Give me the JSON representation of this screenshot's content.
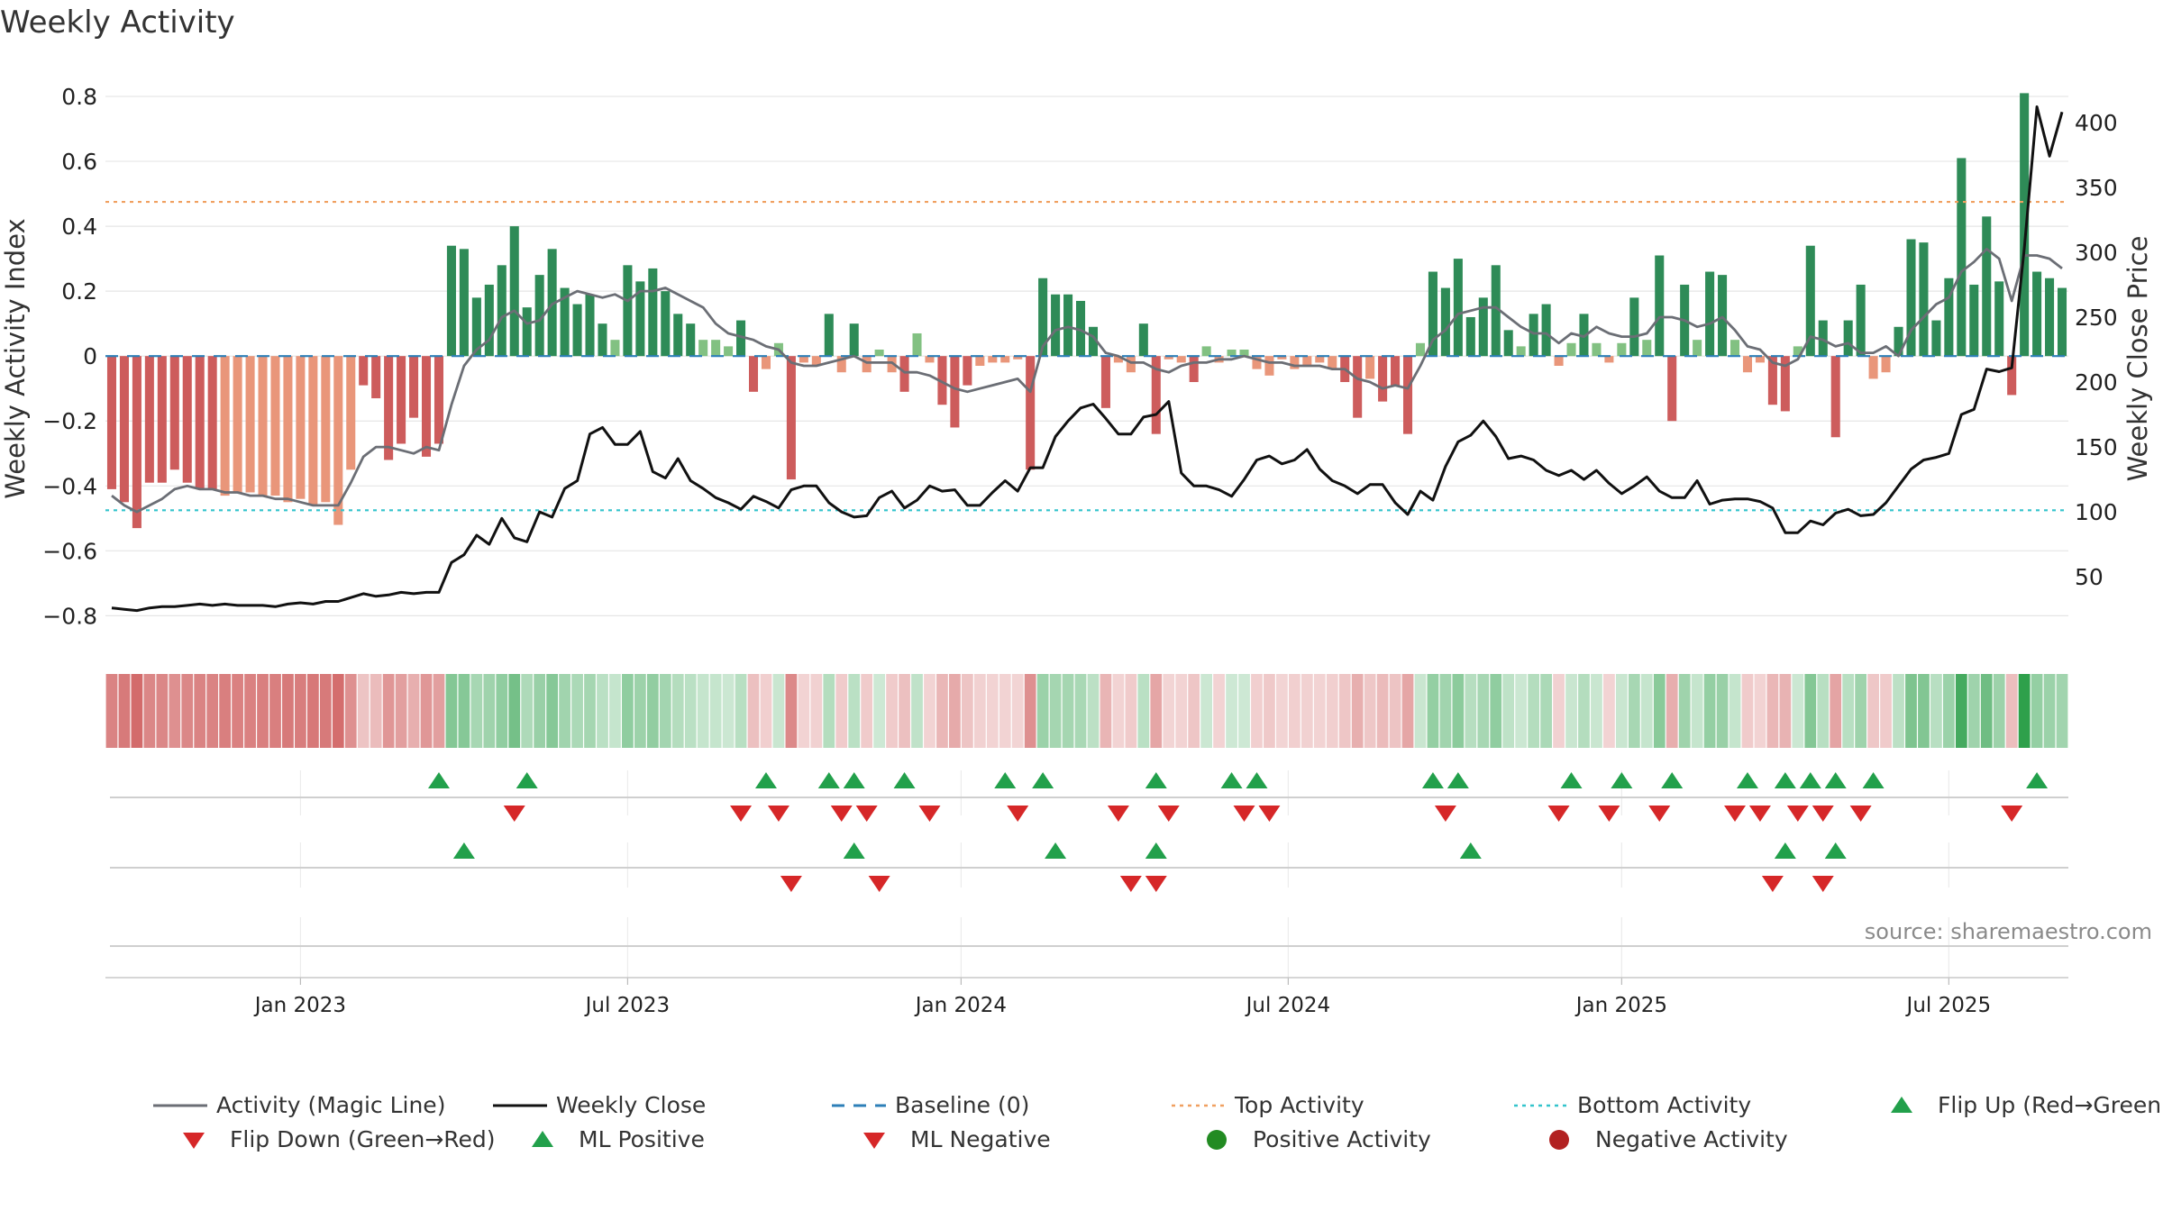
{
  "chart_data": {
    "type": "bar",
    "title": "Weekly Activity",
    "source": "source: sharemaestro.com",
    "ylabel": "Weekly Activity Index",
    "y2label": "Weekly Close Price",
    "ylim": [
      -0.86,
      0.8
    ],
    "y2lim": [
      5,
      420
    ],
    "yticks": [
      -0.8,
      -0.6,
      -0.4,
      -0.2,
      0,
      0.2,
      0.4,
      0.6,
      0.8
    ],
    "yticklabels": [
      "−0.8",
      "−0.6",
      "−0.4",
      "−0.2",
      "0",
      "0.2",
      "0.4",
      "0.6",
      "0.8"
    ],
    "y2ticks": [
      50,
      100,
      150,
      200,
      250,
      300,
      350,
      400
    ],
    "y2ticklabels": [
      "50",
      "100",
      "150",
      "200",
      "250",
      "300",
      "350",
      "400"
    ],
    "week_start_index": 0,
    "xticks": [
      {
        "label": "Jan 2023",
        "week": 15
      },
      {
        "label": "Jul 2023",
        "week": 41
      },
      {
        "label": "Jan 2024",
        "week": 67.5
      },
      {
        "label": "Jul 2024",
        "week": 93.5
      },
      {
        "label": "Jan 2025",
        "week": 120
      },
      {
        "label": "Jul 2025",
        "week": 146
      }
    ],
    "top_activity": 0.475,
    "bottom_activity": -0.475,
    "activity": [
      -0.41,
      -0.45,
      -0.53,
      -0.39,
      -0.39,
      -0.35,
      -0.39,
      -0.41,
      -0.41,
      -0.43,
      -0.42,
      -0.42,
      -0.43,
      -0.43,
      -0.45,
      -0.44,
      -0.46,
      -0.45,
      -0.52,
      -0.35,
      -0.09,
      -0.13,
      -0.32,
      -0.27,
      -0.19,
      -0.31,
      -0.27,
      0.34,
      0.33,
      0.18,
      0.22,
      0.28,
      0.4,
      0.15,
      0.25,
      0.33,
      0.21,
      0.16,
      0.19,
      0.1,
      0.05,
      0.28,
      0.23,
      0.27,
      0.2,
      0.13,
      0.1,
      0.05,
      0.05,
      0.03,
      0.11,
      -0.11,
      -0.04,
      0.04,
      -0.38,
      -0.02,
      -0.03,
      0.13,
      -0.05,
      0.1,
      -0.05,
      0.02,
      -0.05,
      -0.11,
      0.07,
      -0.02,
      -0.15,
      -0.22,
      -0.09,
      -0.03,
      -0.02,
      -0.02,
      -0.01,
      -0.35,
      0.24,
      0.19,
      0.19,
      0.17,
      0.09,
      -0.16,
      -0.02,
      -0.05,
      0.1,
      -0.24,
      -0.01,
      -0.02,
      -0.08,
      0.03,
      -0.02,
      0.02,
      0.02,
      -0.04,
      -0.06,
      -0.01,
      -0.04,
      -0.03,
      -0.02,
      -0.04,
      -0.08,
      -0.19,
      -0.07,
      -0.14,
      -0.09,
      -0.24,
      0.04,
      0.26,
      0.21,
      0.3,
      0.12,
      0.18,
      0.28,
      0.08,
      0.03,
      0.13,
      0.16,
      -0.03,
      0.04,
      0.13,
      0.04,
      -0.02,
      0.04,
      0.18,
      0.05,
      0.31,
      -0.2,
      0.22,
      0.05,
      0.26,
      0.25,
      0.05,
      -0.05,
      -0.02,
      -0.15,
      -0.17,
      0.03,
      0.34,
      0.11,
      -0.25,
      0.11,
      0.22,
      -0.07,
      -0.05,
      0.09,
      0.36,
      0.35,
      0.11,
      0.24,
      0.61,
      0.22,
      0.43,
      0.23,
      -0.12,
      0.81,
      0.26,
      0.24,
      0.21
    ],
    "activity_magic_line": [
      -0.43,
      -0.46,
      -0.48,
      -0.46,
      -0.44,
      -0.41,
      -0.4,
      -0.41,
      -0.41,
      -0.42,
      -0.42,
      -0.43,
      -0.43,
      -0.44,
      -0.44,
      -0.45,
      -0.46,
      -0.46,
      -0.46,
      -0.39,
      -0.31,
      -0.28,
      -0.28,
      -0.29,
      -0.3,
      -0.28,
      -0.29,
      -0.15,
      -0.03,
      0.02,
      0.05,
      0.12,
      0.14,
      0.1,
      0.11,
      0.16,
      0.18,
      0.2,
      0.19,
      0.18,
      0.19,
      0.17,
      0.2,
      0.2,
      0.21,
      0.19,
      0.17,
      0.15,
      0.1,
      0.07,
      0.06,
      0.05,
      0.03,
      0.02,
      -0.02,
      -0.03,
      -0.03,
      -0.02,
      -0.01,
      0.0,
      -0.02,
      -0.02,
      -0.02,
      -0.05,
      -0.05,
      -0.06,
      -0.08,
      -0.1,
      -0.11,
      -0.1,
      -0.09,
      -0.08,
      -0.07,
      -0.11,
      0.03,
      0.08,
      0.09,
      0.08,
      0.06,
      0.01,
      0.0,
      -0.02,
      -0.02,
      -0.04,
      -0.05,
      -0.03,
      -0.02,
      -0.02,
      -0.01,
      -0.01,
      0.0,
      -0.01,
      -0.02,
      -0.02,
      -0.03,
      -0.03,
      -0.03,
      -0.04,
      -0.04,
      -0.07,
      -0.08,
      -0.1,
      -0.09,
      -0.1,
      -0.03,
      0.05,
      0.08,
      0.13,
      0.14,
      0.15,
      0.15,
      0.12,
      0.09,
      0.07,
      0.07,
      0.04,
      0.07,
      0.06,
      0.09,
      0.07,
      0.06,
      0.06,
      0.07,
      0.12,
      0.12,
      0.11,
      0.09,
      0.1,
      0.12,
      0.08,
      0.03,
      0.02,
      -0.02,
      -0.03,
      -0.01,
      0.06,
      0.05,
      0.03,
      0.04,
      0.01,
      0.01,
      0.03,
      0.0,
      0.08,
      0.12,
      0.16,
      0.18,
      0.26,
      0.29,
      0.33,
      0.3,
      0.17,
      0.31,
      0.31,
      0.3,
      0.27
    ],
    "weekly_close": [
      26,
      25,
      24,
      26,
      27,
      27,
      28,
      29,
      28,
      29,
      28,
      28,
      28,
      27,
      29,
      30,
      29,
      31,
      31,
      34,
      37,
      35,
      36,
      38,
      37,
      38,
      38,
      61,
      67,
      82,
      75,
      95,
      80,
      77,
      100,
      96,
      118,
      124,
      160,
      165,
      152,
      152,
      162,
      131,
      126,
      141,
      124,
      118,
      111,
      107,
      102,
      112,
      108,
      103,
      117,
      120,
      120,
      107,
      100,
      96,
      97,
      111,
      116,
      103,
      109,
      120,
      116,
      117,
      105,
      105,
      115,
      124,
      116,
      134,
      134,
      158,
      170,
      180,
      183,
      172,
      160,
      160,
      173,
      175,
      185,
      130,
      120,
      120,
      117,
      112,
      125,
      140,
      143,
      137,
      140,
      148,
      133,
      124,
      120,
      114,
      121,
      121,
      107,
      98,
      116,
      109,
      135,
      154,
      159,
      170,
      158,
      141,
      143,
      140,
      132,
      128,
      132,
      125,
      132,
      122,
      114,
      120,
      127,
      116,
      111,
      111,
      124,
      106,
      109,
      110,
      110,
      108,
      103,
      84,
      84,
      93,
      90,
      99,
      102,
      97,
      98,
      107,
      120,
      133,
      140,
      142,
      145,
      175,
      179,
      210,
      208,
      211,
      303,
      412,
      374,
      408
    ],
    "series": [
      {
        "name": "Activity (Magic Line)",
        "style": "line",
        "color": "#6b6e75"
      },
      {
        "name": "Weekly Close",
        "style": "line",
        "color": "#111111"
      },
      {
        "name": "Baseline (0)",
        "style": "dashed",
        "color": "#2d7fb8"
      },
      {
        "name": "Top Activity",
        "style": "dotted",
        "color": "#f0a060"
      },
      {
        "name": "Bottom Activity",
        "style": "dotted",
        "color": "#33c4cc"
      },
      {
        "name": "Flip Up (Red→Green)",
        "style": "triangle-up",
        "color": "#22a04b"
      },
      {
        "name": "Flip Down (Green→Red)",
        "style": "triangle-down",
        "color": "#d62728"
      },
      {
        "name": "ML Positive",
        "style": "triangle-up",
        "color": "#22a04b"
      },
      {
        "name": "ML Negative",
        "style": "triangle-down",
        "color": "#d62728"
      },
      {
        "name": "Positive Activity",
        "style": "circle",
        "color": "#228b22"
      },
      {
        "name": "Negative Activity",
        "style": "circle",
        "color": "#b22222"
      }
    ],
    "signals": {
      "flip_up_weeks": [
        26,
        33,
        52,
        57,
        59,
        63,
        71,
        74,
        83,
        89,
        91,
        105,
        107,
        116,
        120,
        124,
        130,
        133,
        135,
        137,
        140,
        153
      ],
      "flip_down_weeks": [
        32,
        50,
        53,
        58,
        60,
        65,
        72,
        80,
        84,
        90,
        92,
        106,
        115,
        119,
        123,
        129,
        131,
        134,
        136,
        139,
        151
      ],
      "ml_positive_weeks": [
        28,
        59,
        75,
        83,
        108,
        133,
        137
      ],
      "ml_negative_weeks": [
        54,
        61,
        81,
        83,
        132,
        136
      ]
    },
    "colors": {
      "pos_strong": "#2e8b57",
      "pos_light": "#82c182",
      "neg_strong": "#cd5c5c",
      "neg_light": "#e9967a",
      "grid": "#e6e6e6"
    }
  }
}
